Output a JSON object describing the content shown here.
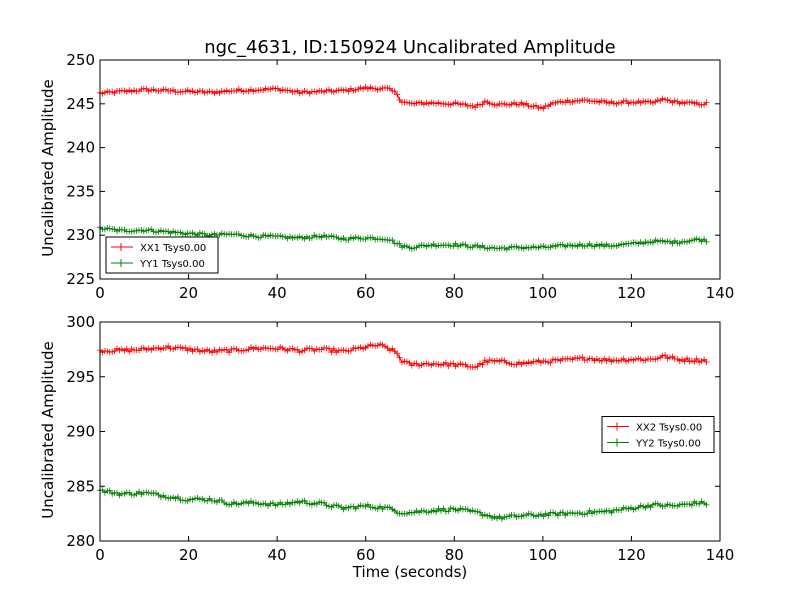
{
  "chart_data": {
    "title": "ngc_4631, ID:150924 Uncalibrated Amplitude",
    "xlabel": "Time (seconds)",
    "subplots": [
      {
        "type": "line",
        "ylabel": "Uncalibrated Amplitude",
        "xlim": [
          0,
          140
        ],
        "ylim": [
          225,
          250
        ],
        "xticks": [
          0,
          20,
          40,
          60,
          80,
          100,
          120,
          140
        ],
        "yticks": [
          225,
          230,
          235,
          240,
          245,
          250
        ],
        "legend_position": "lower-left",
        "series": [
          {
            "name": "XX1 Tsys0.00",
            "color": "#ff0000",
            "marker": "plus",
            "x": [
              0,
              5,
              10,
              15,
              20,
              25,
              30,
              35,
              40,
              45,
              50,
              55,
              60,
              65,
              67,
              68,
              70,
              75,
              80,
              85,
              87,
              90,
              95,
              100,
              102,
              105,
              110,
              115,
              120,
              125,
              127,
              130,
              135,
              137
            ],
            "y": [
              246.2,
              246.4,
              246.6,
              246.5,
              246.4,
              246.3,
              246.5,
              246.6,
              246.7,
              246.3,
              246.4,
              246.5,
              246.8,
              246.7,
              246.2,
              245.3,
              245.0,
              245.1,
              245.0,
              244.7,
              245.3,
              244.9,
              245.0,
              244.5,
              245.0,
              245.3,
              245.4,
              245.1,
              245.2,
              245.1,
              245.5,
              245.2,
              245.0,
              245.0
            ]
          },
          {
            "name": "YY1 Tsys0.00",
            "color": "#008000",
            "marker": "plus",
            "x": [
              0,
              5,
              10,
              15,
              20,
              25,
              30,
              35,
              40,
              45,
              50,
              55,
              60,
              65,
              68,
              70,
              75,
              80,
              85,
              90,
              95,
              100,
              105,
              110,
              115,
              120,
              125,
              130,
              135,
              137
            ],
            "y": [
              230.8,
              230.5,
              230.6,
              230.4,
              230.2,
              230.0,
              230.1,
              229.9,
              229.8,
              229.7,
              229.9,
              229.6,
              229.7,
              229.6,
              228.8,
              228.6,
              228.9,
              228.9,
              228.7,
              228.5,
              228.6,
              228.6,
              228.8,
              228.9,
              228.8,
              229.0,
              229.3,
              229.2,
              229.5,
              229.4
            ]
          }
        ]
      },
      {
        "type": "line",
        "ylabel": "Uncalibrated Amplitude",
        "xlim": [
          0,
          140
        ],
        "ylim": [
          280,
          300
        ],
        "xticks": [
          0,
          20,
          40,
          60,
          80,
          100,
          120,
          140
        ],
        "yticks": [
          280,
          285,
          290,
          295,
          300
        ],
        "legend_position": "center-right",
        "series": [
          {
            "name": "XX2 Tsys0.00",
            "color": "#ff0000",
            "marker": "plus",
            "x": [
              0,
              5,
              10,
              15,
              20,
              25,
              30,
              35,
              40,
              45,
              50,
              55,
              60,
              63,
              65,
              67,
              68,
              70,
              75,
              80,
              85,
              87,
              90,
              95,
              100,
              105,
              110,
              115,
              120,
              125,
              127,
              130,
              135,
              137
            ],
            "y": [
              297.4,
              297.4,
              297.5,
              297.7,
              297.5,
              297.3,
              297.4,
              297.6,
              297.6,
              297.4,
              297.5,
              297.3,
              297.7,
              297.9,
              297.6,
              297.2,
              296.5,
              296.1,
              296.2,
              296.1,
              295.9,
              296.4,
              296.4,
              296.2,
              296.4,
              296.5,
              296.7,
              296.5,
              296.6,
              296.6,
              296.9,
              296.6,
              296.5,
              296.5
            ]
          },
          {
            "name": "YY2 Tsys0.00",
            "color": "#008000",
            "marker": "plus",
            "x": [
              0,
              5,
              10,
              15,
              20,
              25,
              30,
              35,
              40,
              45,
              50,
              55,
              60,
              65,
              68,
              70,
              75,
              80,
              85,
              90,
              95,
              100,
              105,
              110,
              115,
              120,
              125,
              130,
              135,
              137
            ],
            "y": [
              284.6,
              284.3,
              284.4,
              284.1,
              283.8,
              283.8,
              283.4,
              283.5,
              283.3,
              283.6,
              283.4,
              283.0,
              283.2,
              283.0,
              282.6,
              282.6,
              282.8,
              282.9,
              282.6,
              282.1,
              282.3,
              282.4,
              282.5,
              282.6,
              282.7,
              283.0,
              283.3,
              283.2,
              283.5,
              283.4
            ]
          }
        ]
      }
    ]
  }
}
